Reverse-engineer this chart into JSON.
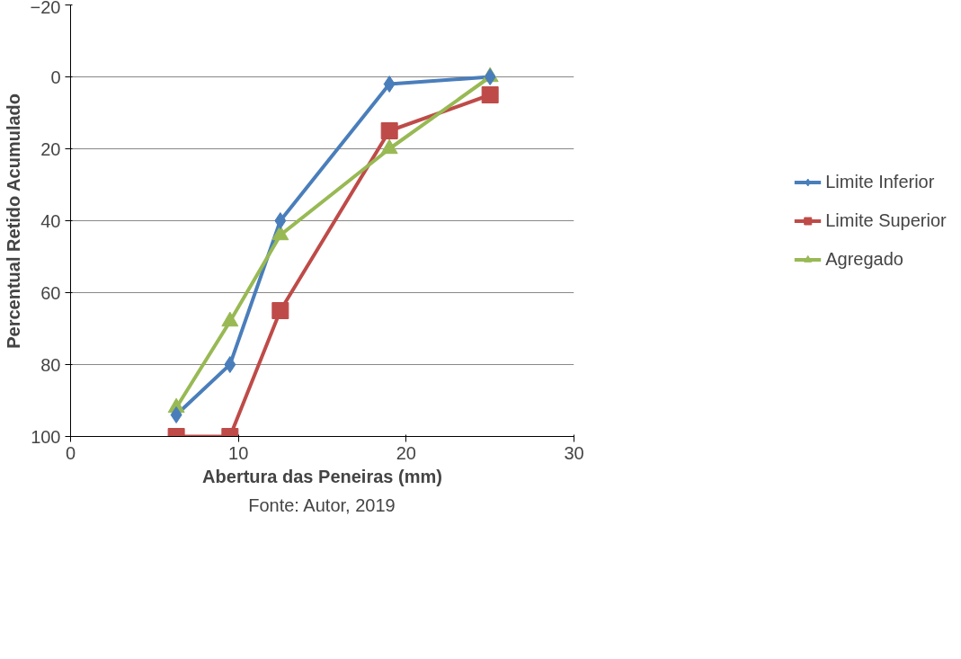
{
  "chart_data": {
    "type": "line",
    "xlabel": "Abertura das Peneiras (mm)",
    "ylabel": "Percentual Retido Acumulado",
    "xlim": [
      0,
      30
    ],
    "xticks": [
      0,
      10,
      20,
      30
    ],
    "ylim": [
      100,
      -20
    ],
    "yticks": [
      -20,
      0,
      20,
      40,
      60,
      80,
      100
    ],
    "grid": "y",
    "legend": "right",
    "series": [
      {
        "name": "Limite Inferior",
        "color": "#4a7ebb",
        "marker": "diamond",
        "x": [
          6.3,
          9.5,
          12.5,
          19,
          25
        ],
        "values": [
          94,
          80,
          40,
          2,
          0
        ]
      },
      {
        "name": "Limite Superior",
        "color": "#be4b48",
        "marker": "square",
        "x": [
          6.3,
          9.5,
          12.5,
          19,
          25
        ],
        "values": [
          100,
          100,
          65,
          15,
          5
        ]
      },
      {
        "name": "Agregado",
        "color": "#98b954",
        "marker": "triangle",
        "x": [
          6.3,
          9.5,
          12.5,
          19,
          25
        ],
        "values": [
          92,
          68,
          44,
          20,
          0
        ]
      }
    ],
    "annotations": [
      "Fonte: Autor, 2019"
    ]
  }
}
